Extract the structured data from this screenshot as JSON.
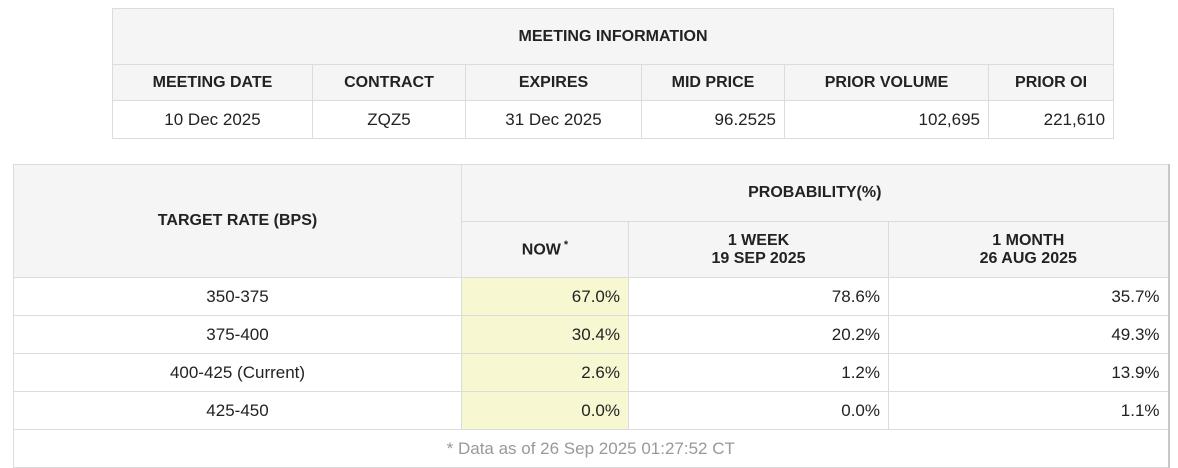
{
  "meeting_information": {
    "title": "MEETING INFORMATION",
    "headers": [
      "MEETING DATE",
      "CONTRACT",
      "EXPIRES",
      "MID PRICE",
      "PRIOR VOLUME",
      "PRIOR OI"
    ],
    "row": [
      "10 Dec 2025",
      "ZQZ5",
      "31 Dec 2025",
      "96.2525",
      "102,695",
      "221,610"
    ]
  },
  "probability_table": {
    "target_rate_header": "TARGET RATE (BPS)",
    "probability_header": "PROBABILITY(%)",
    "columns": [
      {
        "label": "NOW",
        "note": "*"
      },
      {
        "label": "1 WEEK",
        "date": "19 SEP 2025"
      },
      {
        "label": "1 MONTH",
        "date": "26 AUG 2025"
      }
    ],
    "rows": [
      {
        "target_rate": "350-375",
        "values": [
          "67.0%",
          "78.6%",
          "35.7%"
        ]
      },
      {
        "target_rate": "375-400",
        "values": [
          "30.4%",
          "20.2%",
          "49.3%"
        ]
      },
      {
        "target_rate": "400-425 (Current)",
        "values": [
          "2.6%",
          "1.2%",
          "13.9%"
        ]
      },
      {
        "target_rate": "425-450",
        "values": [
          "0.0%",
          "0.0%",
          "1.1%"
        ]
      }
    ],
    "footnote": "* Data as of 26 Sep 2025 01:27:52 CT"
  }
}
